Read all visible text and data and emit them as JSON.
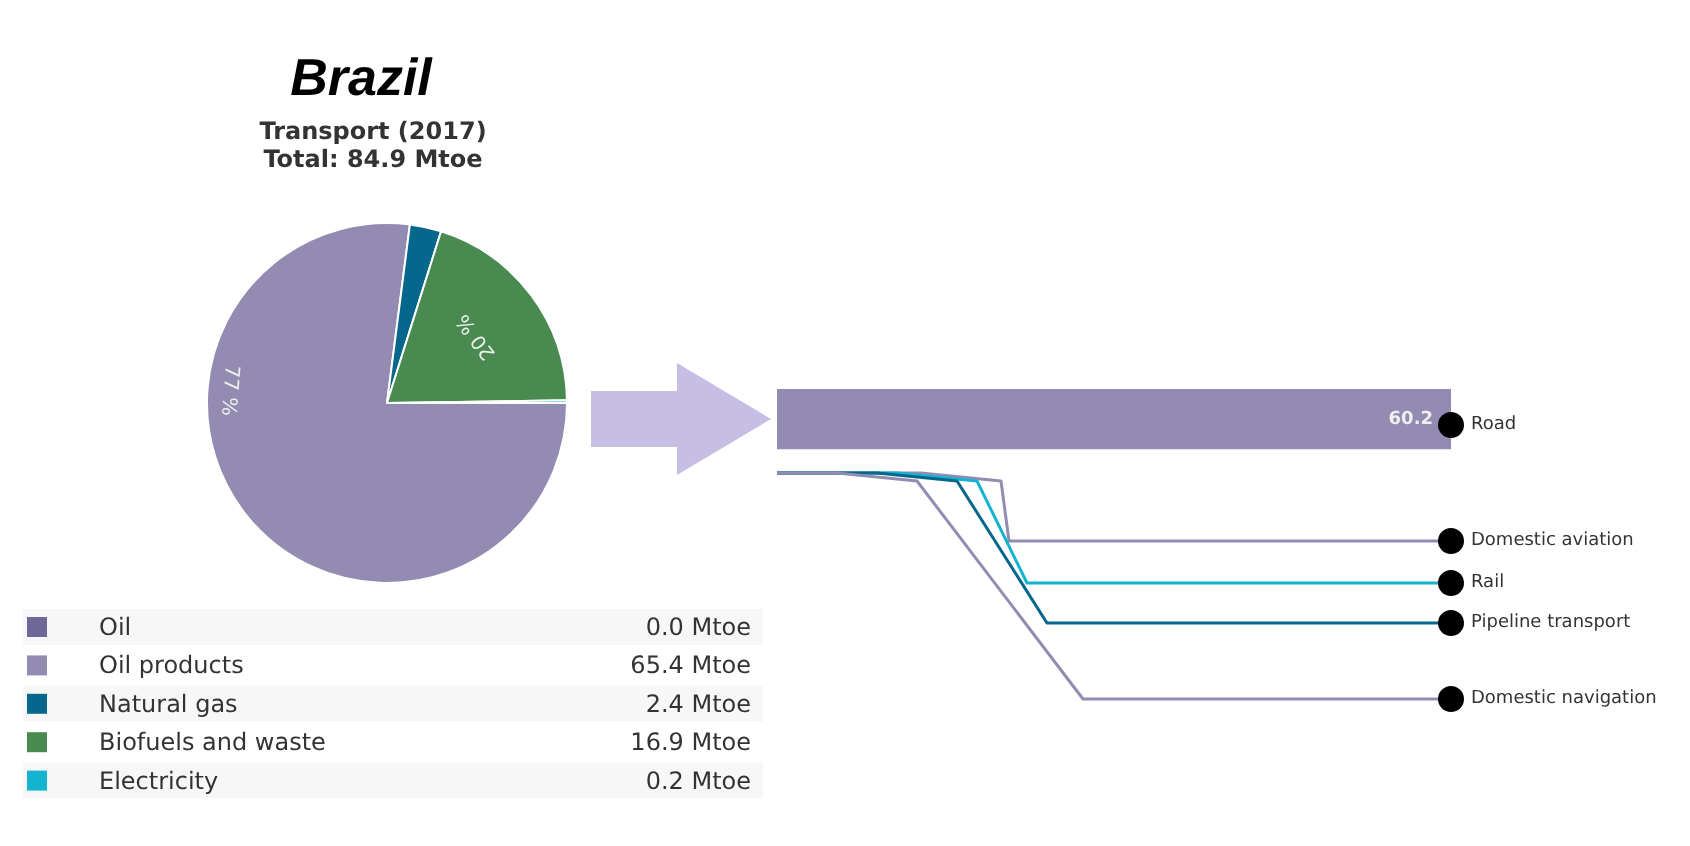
{
  "chart_data": [
    {
      "type": "pie",
      "title": "Brazil",
      "subtitle": "Transport (2017)\nTotal: 84.9 Mtoe",
      "categories": [
        "Oil",
        "Oil products",
        "Natural gas",
        "Biofuels and waste",
        "Electricity"
      ],
      "values": [
        0.0,
        65.4,
        2.4,
        16.9,
        0.2
      ],
      "colors": [
        "#6e6898",
        "#938bb2",
        "#05678b",
        "#488a50",
        "#14b4d0"
      ],
      "value_labels": [
        "0.0 Mtoe",
        "65.4 Mtoe",
        "2.4 Mtoe",
        "16.9 Mtoe",
        "0.2 Mtoe"
      ],
      "annotations": [
        {
          "text": "77 %",
          "x": "Oil products"
        },
        {
          "text": "20 %",
          "x": "Biofuels and waste"
        }
      ],
      "legend": "bottom"
    },
    {
      "type": "other",
      "categories": [
        "Road",
        "Domestic aviation",
        "Rail",
        "Pipeline transport",
        "Domestic navigation"
      ],
      "values": [
        60.2,
        null,
        null,
        null,
        null
      ],
      "colors": [
        "#938bb2",
        "#938bb2",
        "#14b4d0",
        "#05678b",
        "#938bb2"
      ],
      "value_labels": [
        "60.2",
        null,
        null,
        null,
        null
      ]
    }
  ]
}
